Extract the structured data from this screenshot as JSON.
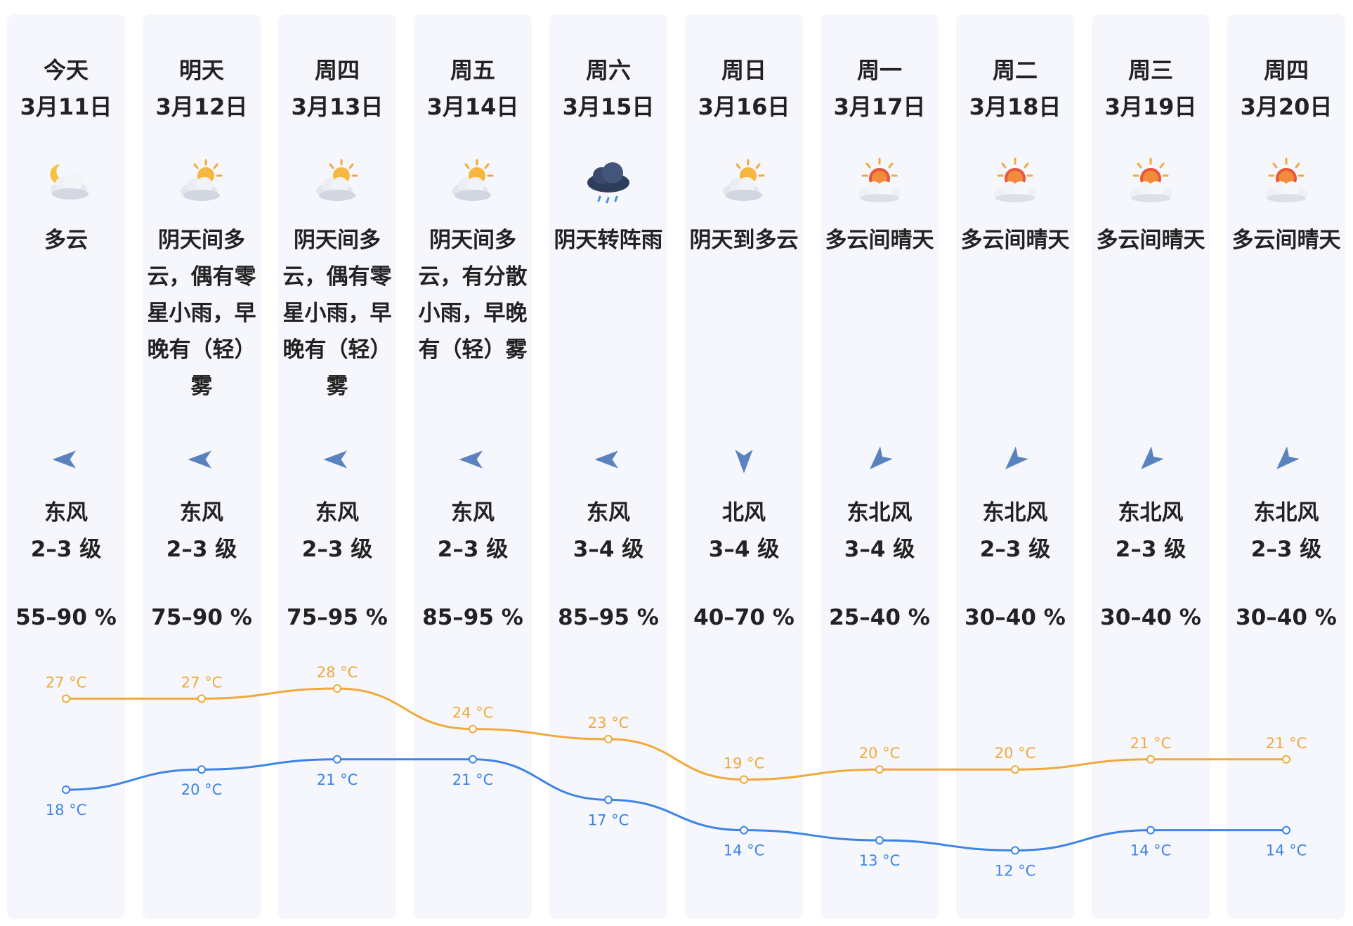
{
  "forecast": {
    "days": [
      {
        "day": "今天",
        "date": "3月11日",
        "icon": "moon-cloud-icon",
        "desc": "多云",
        "wind_dir": "东风",
        "wind_level": "2–3 级",
        "humidity": "55–90 %",
        "high": "27 °C",
        "low": "18 °C"
      },
      {
        "day": "明天",
        "date": "3月12日",
        "icon": "sun-behind-clouds-icon",
        "desc": "阴天间多云，偶有零星小雨，早晚有（轻）雾",
        "wind_dir": "东风",
        "wind_level": "2–3 级",
        "humidity": "75–90 %",
        "high": "27 °C",
        "low": "20 °C"
      },
      {
        "day": "周四",
        "date": "3月13日",
        "icon": "sun-behind-clouds-icon",
        "desc": "阴天间多云，偶有零星小雨，早晚有（轻）雾",
        "wind_dir": "东风",
        "wind_level": "2–3 级",
        "humidity": "75–95 %",
        "high": "28 °C",
        "low": "21 °C"
      },
      {
        "day": "周五",
        "date": "3月14日",
        "icon": "sun-behind-clouds-icon",
        "desc": "阴天间多云，有分散小雨，早晚有（轻）雾",
        "wind_dir": "东风",
        "wind_level": "2–3 级",
        "humidity": "85–95 %",
        "high": "24 °C",
        "low": "21 °C"
      },
      {
        "day": "周六",
        "date": "3月15日",
        "icon": "rain-cloud-icon",
        "desc": "阴天转阵雨",
        "wind_dir": "东风",
        "wind_level": "3–4 级",
        "humidity": "85–95 %",
        "high": "23 °C",
        "low": "17 °C"
      },
      {
        "day": "周日",
        "date": "3月16日",
        "icon": "sun-behind-clouds-icon",
        "desc": "阴天到多云",
        "wind_dir": "北风",
        "wind_level": "3–4 级",
        "humidity": "40–70 %",
        "high": "19 °C",
        "low": "14 °C"
      },
      {
        "day": "周一",
        "date": "3月17日",
        "icon": "sun-behind-cloud-icon",
        "desc": "多云间晴天",
        "wind_dir": "东北风",
        "wind_level": "3–4 级",
        "humidity": "25–40 %",
        "high": "20 °C",
        "low": "13 °C"
      },
      {
        "day": "周二",
        "date": "3月18日",
        "icon": "sun-behind-cloud-icon",
        "desc": "多云间晴天",
        "wind_dir": "东北风",
        "wind_level": "2–3 级",
        "humidity": "30–40 %",
        "high": "20 °C",
        "low": "12 °C"
      },
      {
        "day": "周三",
        "date": "3月19日",
        "icon": "sun-behind-cloud-icon",
        "desc": "多云间晴天",
        "wind_dir": "东北风",
        "wind_level": "2–3 级",
        "humidity": "30–40 %",
        "high": "21 °C",
        "low": "14 °C"
      },
      {
        "day": "周四",
        "date": "3月20日",
        "icon": "sun-behind-cloud-icon",
        "desc": "多云间晴天",
        "wind_dir": "东北风",
        "wind_level": "2–3 级",
        "humidity": "30–40 %",
        "high": "21 °C",
        "low": "14 °C"
      }
    ]
  },
  "chart_data": {
    "type": "line",
    "x": [
      "3月11日",
      "3月12日",
      "3月13日",
      "3月14日",
      "3月15日",
      "3月16日",
      "3月17日",
      "3月18日",
      "3月19日",
      "3月20日"
    ],
    "series": [
      {
        "values": [
          27,
          27,
          28,
          24,
          23,
          19,
          20,
          20,
          21,
          21
        ],
        "color": "#f0a93b"
      },
      {
        "values": [
          18,
          20,
          21,
          21,
          17,
          14,
          13,
          12,
          14,
          14
        ],
        "color": "#3d84e6"
      }
    ],
    "unit": "°C",
    "grid": false
  },
  "colors": {
    "high": "#f0a93b",
    "low": "#3d84e6",
    "column_bg": "#f6f7fc",
    "arrow": "#5a82bf"
  }
}
